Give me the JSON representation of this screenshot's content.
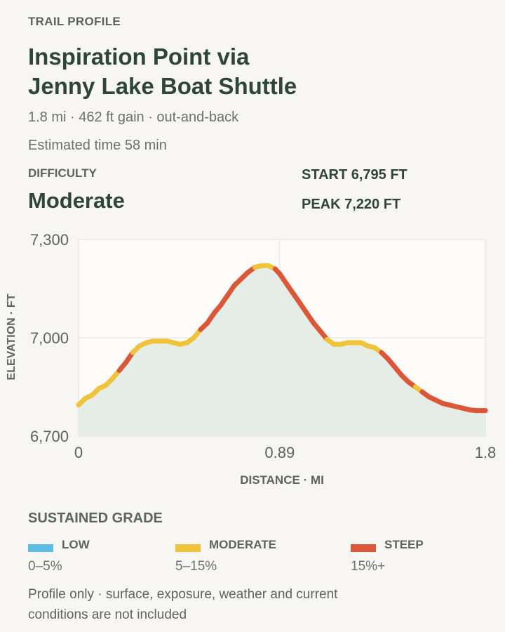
{
  "header": {
    "eyebrow": "TRAIL PROFILE",
    "title_line1": "Inspiration Point via",
    "title_line2": "Jenny Lake Boat Shuttle",
    "stats": "1.8 mi · 462 ft gain · out-and-back",
    "time": "Estimated time 58 min"
  },
  "difficulty": {
    "label": "DIFFICULTY",
    "value": "Moderate"
  },
  "elevations": {
    "start": "START 6,795 FT",
    "peak": "PEAK 7,220 FT"
  },
  "colors": {
    "background": "#f7f6f2",
    "plot_bg": "#fcfbf9",
    "area_fill": "#e6ece6",
    "low": "#5fbde6",
    "moderate": "#f0c43a",
    "steep": "#dc5638"
  },
  "legend": {
    "title": "SUSTAINED GRADE",
    "items": [
      {
        "name": "LOW",
        "range": "0–5%",
        "color": "#5fbde6"
      },
      {
        "name": "MODERATE",
        "range": "5–15%",
        "color": "#f0c43a"
      },
      {
        "name": "STEEP",
        "range": "15%+",
        "color": "#dc5638"
      }
    ]
  },
  "footnote": "Profile only · surface, exposure, weather and current conditions are not included",
  "chart_data": {
    "type": "area",
    "title": "",
    "xlabel": "DISTANCE · MI",
    "ylabel": "ELEVATION · FT",
    "xlim": [
      0,
      1.8
    ],
    "ylim": [
      6700,
      7300
    ],
    "x_ticks": [
      0,
      0.89,
      1.8
    ],
    "x_tick_labels": [
      "0",
      "0.89",
      "1.8"
    ],
    "y_ticks": [
      6700,
      7000,
      7300
    ],
    "y_tick_labels": [
      "6,700",
      "7,000",
      "7,300"
    ],
    "grid": true,
    "line_colored_by": "sustained grade",
    "x": [
      0,
      0.03,
      0.06,
      0.09,
      0.12,
      0.15,
      0.18,
      0.21,
      0.24,
      0.27,
      0.3,
      0.33,
      0.36,
      0.39,
      0.42,
      0.45,
      0.48,
      0.51,
      0.54,
      0.57,
      0.6,
      0.63,
      0.66,
      0.69,
      0.72,
      0.75,
      0.78,
      0.81,
      0.84,
      0.87,
      0.89,
      0.92,
      0.95,
      0.98,
      1.01,
      1.04,
      1.07,
      1.1,
      1.13,
      1.16,
      1.19,
      1.22,
      1.25,
      1.28,
      1.31,
      1.34,
      1.37,
      1.4,
      1.43,
      1.46,
      1.49,
      1.52,
      1.55,
      1.58,
      1.61,
      1.64,
      1.67,
      1.7,
      1.73,
      1.76,
      1.8
    ],
    "y": [
      6795,
      6815,
      6825,
      6845,
      6855,
      6875,
      6900,
      6925,
      6955,
      6975,
      6985,
      6990,
      6990,
      6990,
      6985,
      6980,
      6985,
      7000,
      7025,
      7045,
      7075,
      7100,
      7130,
      7160,
      7180,
      7200,
      7215,
      7220,
      7220,
      7210,
      7195,
      7165,
      7135,
      7105,
      7075,
      7045,
      7020,
      6995,
      6980,
      6980,
      6985,
      6985,
      6985,
      6975,
      6970,
      6955,
      6935,
      6910,
      6885,
      6865,
      6850,
      6835,
      6820,
      6810,
      6800,
      6795,
      6790,
      6785,
      6780,
      6778,
      6778
    ],
    "grade": [
      "moderate",
      "moderate",
      "moderate",
      "moderate",
      "moderate",
      "moderate",
      "steep",
      "steep",
      "moderate",
      "moderate",
      "moderate",
      "moderate",
      "moderate",
      "moderate",
      "moderate",
      "moderate",
      "moderate",
      "moderate",
      "steep",
      "steep",
      "steep",
      "steep",
      "steep",
      "steep",
      "steep",
      "steep",
      "moderate",
      "moderate",
      "moderate",
      "steep",
      "steep",
      "steep",
      "steep",
      "steep",
      "steep",
      "steep",
      "steep",
      "moderate",
      "moderate",
      "moderate",
      "moderate",
      "moderate",
      "moderate",
      "moderate",
      "moderate",
      "steep",
      "steep",
      "steep",
      "steep",
      "steep",
      "moderate",
      "steep",
      "steep",
      "steep",
      "steep",
      "steep",
      "steep",
      "steep",
      "steep",
      "steep"
    ]
  }
}
